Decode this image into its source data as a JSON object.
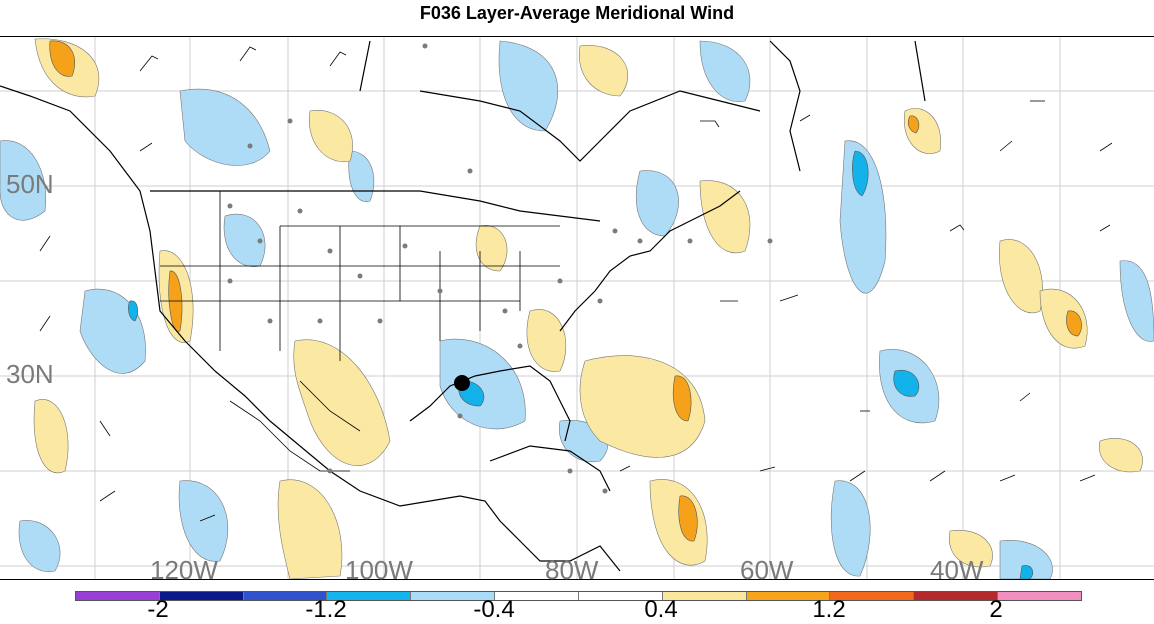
{
  "title": "F036 Layer-Average Meridional Wind",
  "latitude_labels": [
    "50N",
    "30N"
  ],
  "longitude_labels": [
    "120W",
    "100W",
    "80W",
    "60W",
    "40W"
  ],
  "colorbar": {
    "colors": [
      "#9a3fd6",
      "#0a1a8a",
      "#2f53cf",
      "#12b6ec",
      "#a9dcf6",
      "#ffffff",
      "#fbe79c",
      "#f5a41c",
      "#f16a1c",
      "#b5282b",
      "#f08fbe"
    ],
    "labels": [
      "-2",
      "-1.2",
      "-0.4",
      "0.4",
      "1.2",
      "2"
    ]
  },
  "map_colors": {
    "light_blue": "#aedcf6",
    "mid_blue": "#13b2ea",
    "light_yellow": "#fbe8a2",
    "orange": "#f5a21a",
    "gray_dot": "#7b7b7b",
    "grid": "#cfcfcf"
  }
}
